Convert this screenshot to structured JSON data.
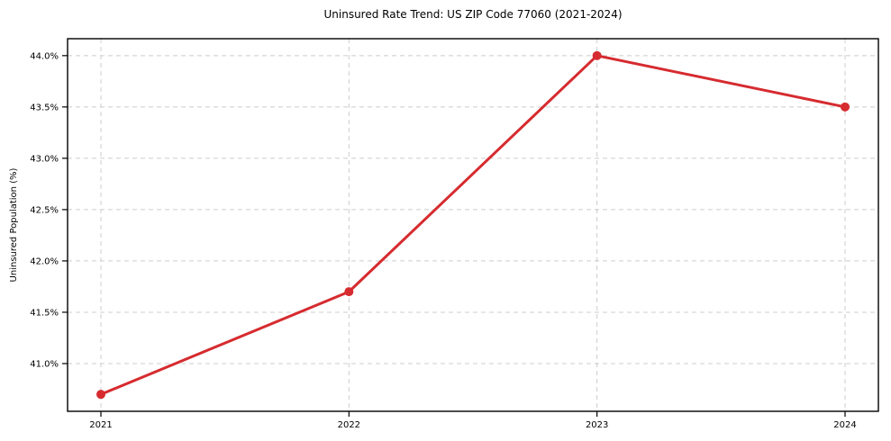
{
  "chart_data": {
    "type": "line",
    "title": "Uninsured Rate Trend: US ZIP Code 77060 (2021-2024)",
    "xlabel": "",
    "ylabel": "Uninsured Population (%)",
    "categories": [
      "2021",
      "2022",
      "2023",
      "2024"
    ],
    "series": [
      {
        "name": "uninsured-rate",
        "values": [
          40.7,
          41.7,
          44.0,
          43.5
        ],
        "color": "#d62b2f",
        "marker": "circle",
        "line_width": 3,
        "marker_radius": 5
      }
    ],
    "ylim": [
      40.535,
      44.165
    ],
    "yticks": [
      41.0,
      41.5,
      42.0,
      42.5,
      43.0,
      43.5,
      44.0
    ],
    "ytick_labels": [
      "41.0%",
      "41.5%",
      "42.0%",
      "42.5%",
      "43.0%",
      "43.5%",
      "44.0%"
    ],
    "grid": "dashed",
    "legend_position": "none",
    "colors": {
      "grid": "#cccccc",
      "frame": "#000000",
      "tick": "#000000",
      "text": "#000000",
      "background": "#ffffff"
    }
  }
}
